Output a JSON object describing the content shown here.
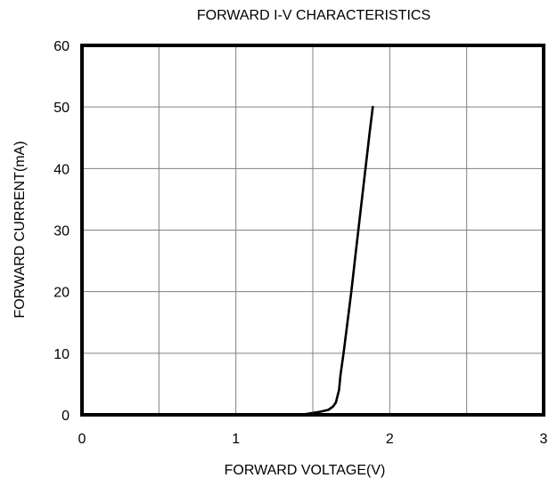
{
  "chart_data": {
    "type": "line",
    "title": "FORWARD I-V CHARACTERISTICS",
    "xlabel": "FORWARD VOLTAGE(V)",
    "ylabel": "FORWARD CURRENT(mA)",
    "xlim": [
      0,
      3
    ],
    "ylim": [
      0,
      60
    ],
    "x_ticks": [
      0,
      1,
      2,
      3
    ],
    "y_ticks": [
      0,
      10,
      20,
      30,
      40,
      50,
      60
    ],
    "grid": true,
    "legend": "none",
    "colors": {
      "line": "#000000",
      "grid": "#808080",
      "frame": "#000000"
    },
    "series": [
      {
        "x": [
          1.38,
          1.45,
          1.5,
          1.55,
          1.6,
          1.63,
          1.65,
          1.66,
          1.67,
          1.68,
          1.7,
          1.72,
          1.75,
          1.78,
          1.81,
          1.84,
          1.87,
          1.89
        ],
        "y": [
          0,
          0.1,
          0.3,
          0.5,
          0.8,
          1.3,
          2.0,
          3.0,
          4.0,
          6.5,
          10.0,
          14.0,
          20.0,
          26.5,
          33.0,
          39.5,
          46.0,
          50.0
        ]
      }
    ]
  }
}
